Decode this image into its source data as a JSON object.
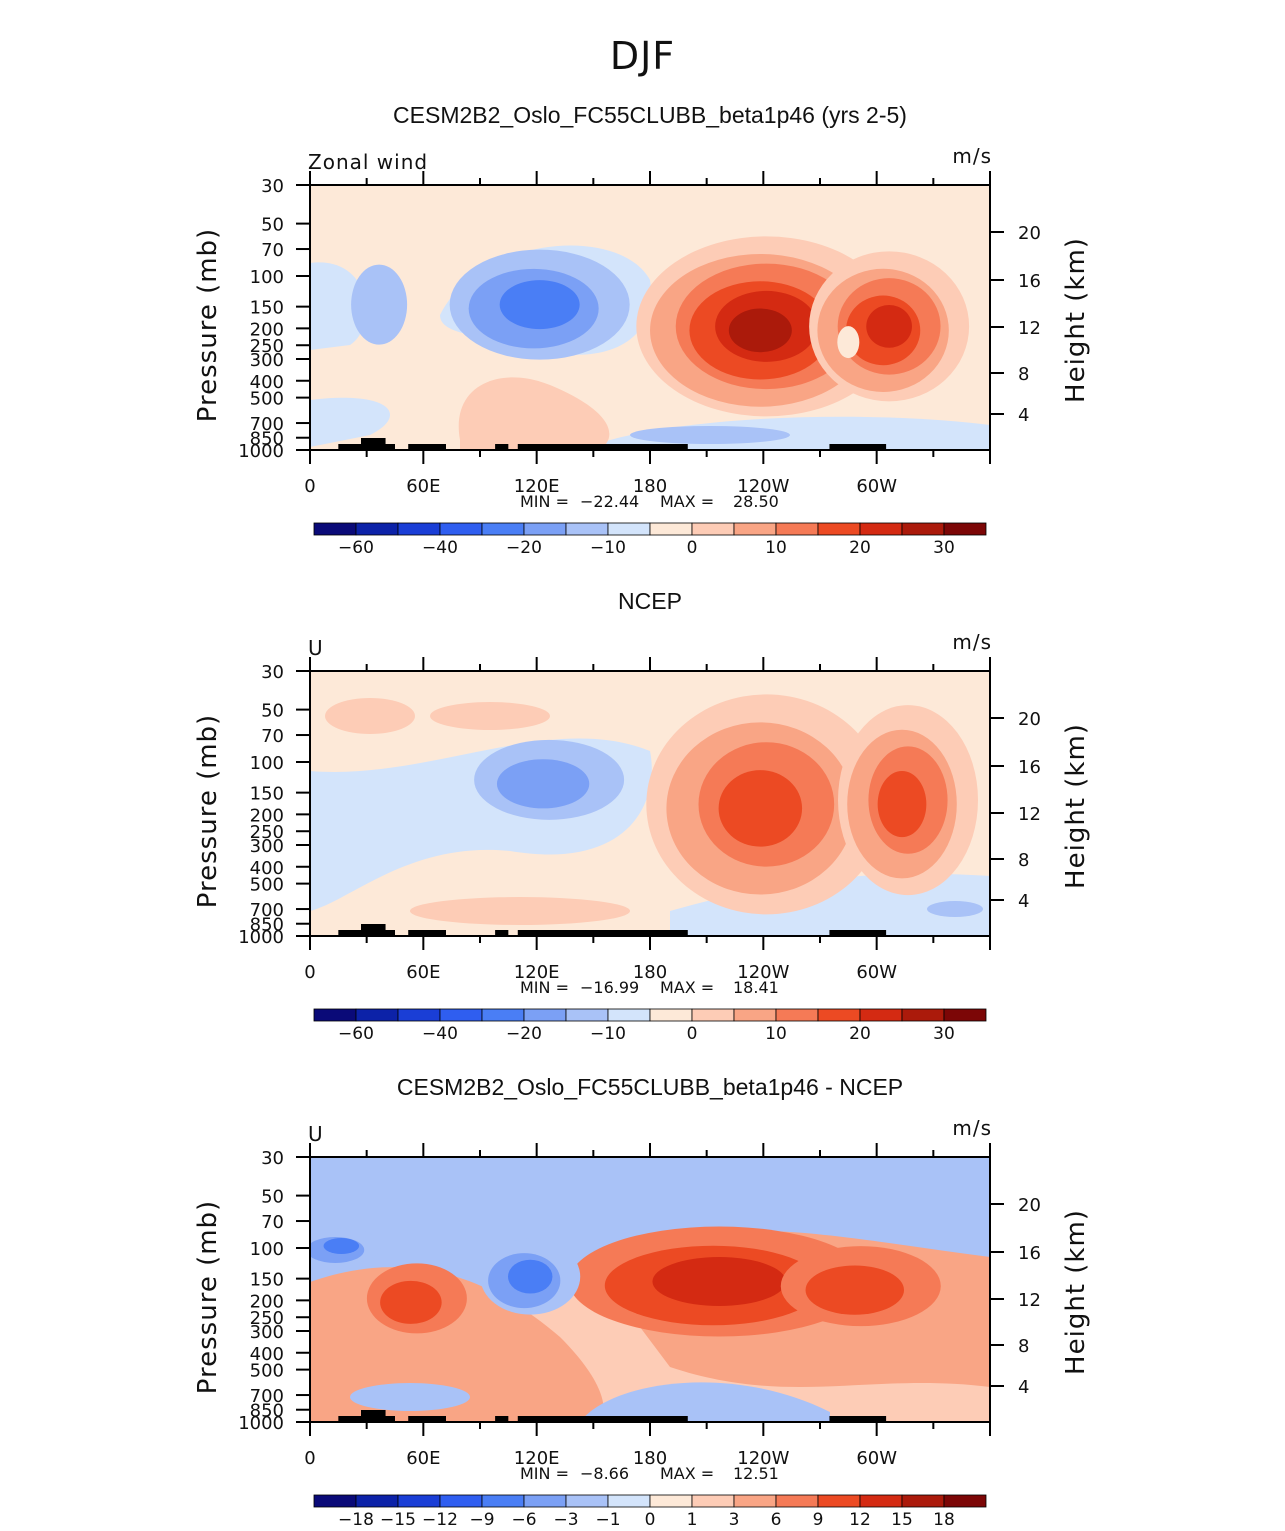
{
  "title": "DJF",
  "chart_data": [
    {
      "type": "heatmap",
      "title": "CESM2B2_Oslo_FC55CLUBB_beta1p46 (yrs 2-5)",
      "left_label": "Zonal wind",
      "units": "m/s",
      "ylabel": "Pressure (mb)",
      "y2label": "Height (km)",
      "x_ticks": [
        "0",
        "60E",
        "120E",
        "180",
        "120W",
        "60W"
      ],
      "y_ticks": [
        "30",
        "50",
        "70",
        "100",
        "150",
        "200",
        "250",
        "300",
        "400",
        "500",
        "700",
        "850",
        "1000"
      ],
      "y2_ticks": [
        "20",
        "16",
        "12",
        "8",
        "4"
      ],
      "stats": {
        "min_label": "MIN =",
        "min": "−22.44",
        "max_label": "MAX =",
        "max": "28.50"
      },
      "colorbar_labels": [
        "−60",
        "−40",
        "−20",
        "−10",
        "0",
        "10",
        "20",
        "30"
      ],
      "features": [
        {
          "lon": 240,
          "p": 200,
          "value": 28.5
        },
        {
          "lon": 305,
          "p": 200,
          "value": 22
        },
        {
          "lon": 120,
          "p": 150,
          "value": -22.4
        },
        {
          "lon": 35,
          "p": 150,
          "value": -8
        },
        {
          "lon": 125,
          "p": 700,
          "value": 6
        }
      ]
    },
    {
      "type": "heatmap",
      "title": "NCEP",
      "left_label": "U",
      "units": "m/s",
      "ylabel": "Pressure (mb)",
      "y2label": "Height (km)",
      "x_ticks": [
        "0",
        "60E",
        "120E",
        "180",
        "120W",
        "60W"
      ],
      "y_ticks": [
        "30",
        "50",
        "70",
        "100",
        "150",
        "200",
        "250",
        "300",
        "400",
        "500",
        "700",
        "850",
        "1000"
      ],
      "y2_ticks": [
        "20",
        "16",
        "12",
        "8",
        "4"
      ],
      "stats": {
        "min_label": "MIN =",
        "min": "−16.99",
        "max_label": "MAX =",
        "max": "18.41"
      },
      "colorbar_labels": [
        "−60",
        "−40",
        "−20",
        "−10",
        "0",
        "10",
        "20",
        "30"
      ],
      "features": [
        {
          "lon": 240,
          "p": 180,
          "value": 18.4
        },
        {
          "lon": 315,
          "p": 170,
          "value": 15
        },
        {
          "lon": 125,
          "p": 130,
          "value": -17
        },
        {
          "lon": 40,
          "p": 60,
          "value": 4
        }
      ]
    },
    {
      "type": "heatmap",
      "title": "CESM2B2_Oslo_FC55CLUBB_beta1p46 - NCEP",
      "left_label": "U",
      "units": "m/s",
      "ylabel": "Pressure (mb)",
      "y2label": "Height (km)",
      "x_ticks": [
        "0",
        "60E",
        "120E",
        "180",
        "120W",
        "60W"
      ],
      "y_ticks": [
        "30",
        "50",
        "70",
        "100",
        "150",
        "200",
        "250",
        "300",
        "400",
        "500",
        "700",
        "850",
        "1000"
      ],
      "y2_ticks": [
        "20",
        "16",
        "12",
        "8",
        "4"
      ],
      "stats": {
        "min_label": "MIN =",
        "min": "−8.66",
        "max_label": "MAX =",
        "max": "12.51"
      },
      "colorbar_labels": [
        "−18",
        "−15",
        "−12",
        "−9",
        "−6",
        "−3",
        "−1",
        "0",
        "1",
        "3",
        "6",
        "9",
        "12",
        "15",
        "18"
      ],
      "features": [
        {
          "lon": 215,
          "p": 160,
          "value": 12.5
        },
        {
          "lon": 290,
          "p": 170,
          "value": 11
        },
        {
          "lon": 55,
          "p": 200,
          "value": 10
        },
        {
          "lon": 115,
          "p": 150,
          "value": -8.7
        },
        {
          "lon": 15,
          "p": 100,
          "value": -8
        }
      ]
    }
  ],
  "colormap": [
    "#0a0a78",
    "#0c22a8",
    "#1a3ed6",
    "#2f5ef0",
    "#4a7ef5",
    "#7ba0f5",
    "#a9c2f7",
    "#d3e4fb",
    "#fde9d8",
    "#fdccb6",
    "#f9a585",
    "#f57a56",
    "#ec4a23",
    "#d42a12",
    "#ab1a0b",
    "#7c0606"
  ]
}
